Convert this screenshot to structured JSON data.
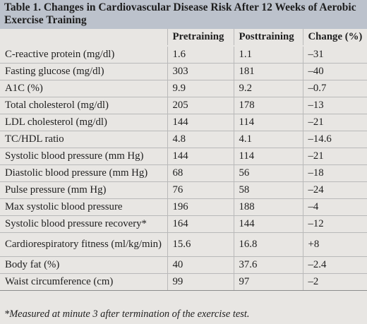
{
  "title": "Table 1. Changes in Cardiovascular Disease Risk After 12 Weeks of Aerobic Exercise Training",
  "columns": [
    "",
    "Pretraining",
    "Posttraining",
    "Change (%)"
  ],
  "rows": [
    {
      "label": "C-reactive protein (mg/dl)",
      "pre": "1.6",
      "post": "1.1",
      "change": "–31"
    },
    {
      "label": "Fasting glucose (mg/dl)",
      "pre": "303",
      "post": "181",
      "change": "–40"
    },
    {
      "label": "A1C (%)",
      "pre": "9.9",
      "post": "9.2",
      "change": "–0.7"
    },
    {
      "label": "Total cholesterol (mg/dl)",
      "pre": "205",
      "post": "178",
      "change": "–13"
    },
    {
      "label": "LDL cholesterol (mg/dl)",
      "pre": "144",
      "post": "114",
      "change": "–21"
    },
    {
      "label": "TC/HDL ratio",
      "pre": "4.8",
      "post": "4.1",
      "change": "–14.6"
    },
    {
      "label": "Systolic blood pressure (mm Hg)",
      "pre": "144",
      "post": "114",
      "change": "–21"
    },
    {
      "label": "Diastolic blood pressure (mm Hg)",
      "pre": "68",
      "post": "56",
      "change": "–18"
    },
    {
      "label": "Pulse pressure (mm Hg)",
      "pre": "76",
      "post": "58",
      "change": "–24"
    },
    {
      "label": "Max systolic blood pressure",
      "pre": "196",
      "post": "188",
      "change": "–4"
    },
    {
      "label": "Systolic blood pressure recovery*",
      "pre": "164",
      "post": "144",
      "change": "–12"
    },
    {
      "label": "Cardiorespiratory fitness (ml/kg/min)",
      "pre": "15.6",
      "post": "16.8",
      "change": "+8"
    },
    {
      "label": "Body fat (%)",
      "pre": "40",
      "post": "37.6",
      "change": "–2.4"
    },
    {
      "label": "Waist circumference (cm)",
      "pre": "99",
      "post": "97",
      "change": "–2"
    }
  ],
  "footnote": "*Measured at minute 3 after termination of the exercise test."
}
